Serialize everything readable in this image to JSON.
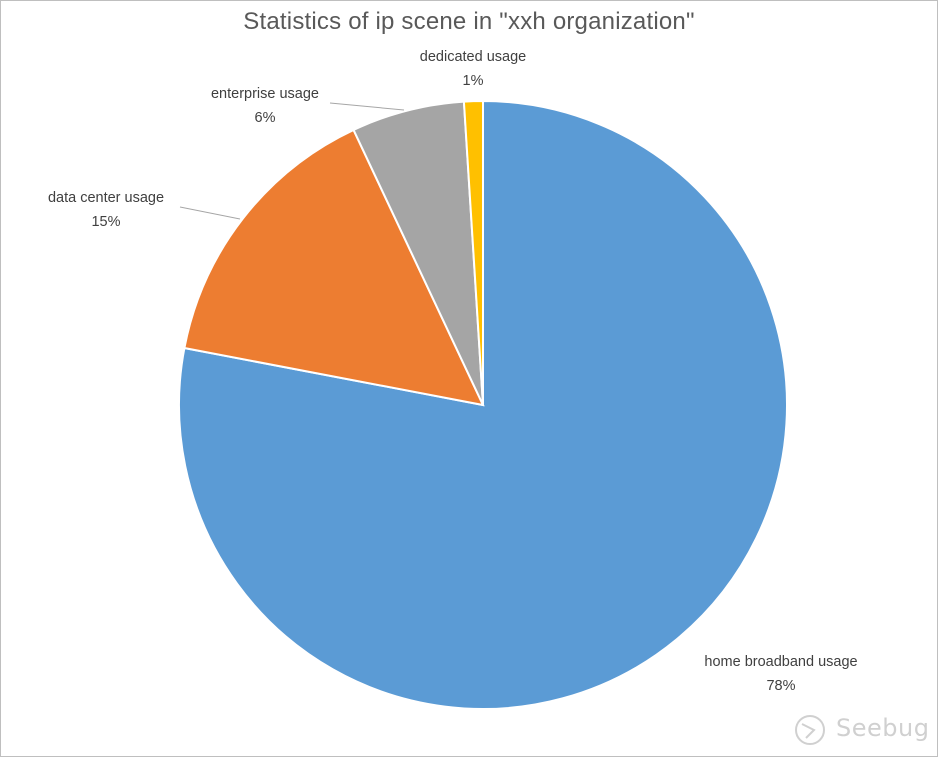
{
  "chart_data": {
    "type": "pie",
    "title": "Statistics of ip scene in \"xxh organization\"",
    "slices": [
      {
        "label": "home broadband usage",
        "value": 78,
        "value_label": "78%",
        "color": "#5b9bd5"
      },
      {
        "label": "data center usage",
        "value": 15,
        "value_label": "15%",
        "color": "#ed7d31"
      },
      {
        "label": "enterprise usage",
        "value": 6,
        "value_label": "6%",
        "color": "#a5a5a5"
      },
      {
        "label": "dedicated usage",
        "value": 1,
        "value_label": "1%",
        "color": "#ffc000"
      }
    ],
    "start": "12 o'clock",
    "direction": "clockwise",
    "legend": "none"
  },
  "watermark": {
    "text": "Seebug",
    "icon": "seebug-logo-icon"
  }
}
